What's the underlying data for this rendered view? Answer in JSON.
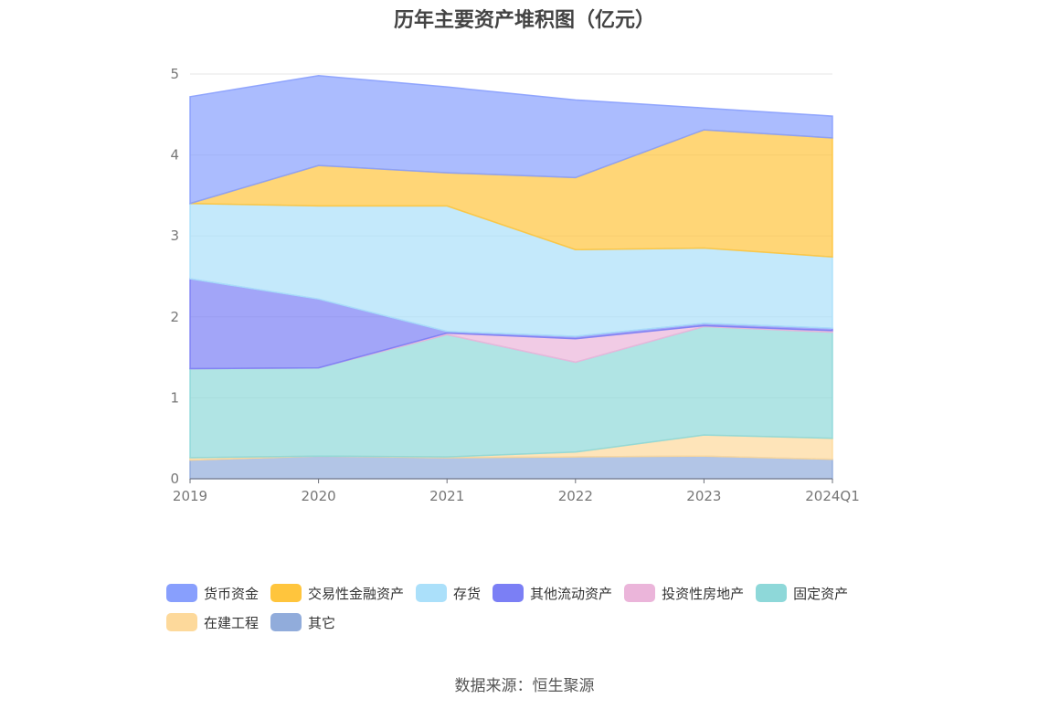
{
  "source_label": "数据来源：",
  "source_name": "恒生聚源",
  "chart_data": {
    "type": "area",
    "stacked": true,
    "title": "历年主要资产堆积图（亿元）",
    "categories": [
      "2019",
      "2020",
      "2021",
      "2022",
      "2023",
      "2024Q1"
    ],
    "ylim": [
      0,
      5
    ],
    "yticks": [
      0,
      1,
      2,
      3,
      4,
      5
    ],
    "grid": true,
    "legend_position": "bottom",
    "series": [
      {
        "name": "其它",
        "color": "#91acdb",
        "values": [
          0.23,
          0.28,
          0.26,
          0.27,
          0.28,
          0.24
        ]
      },
      {
        "name": "在建工程",
        "color": "#fdd99b",
        "values": [
          0.03,
          0.0,
          0.01,
          0.06,
          0.26,
          0.26
        ]
      },
      {
        "name": "固定资产",
        "color": "#8ed8d9",
        "values": [
          1.1,
          1.09,
          1.51,
          1.11,
          1.34,
          1.31
        ]
      },
      {
        "name": "投资性房地产",
        "color": "#ebb5da",
        "values": [
          0.0,
          0.0,
          0.02,
          0.29,
          0.01,
          0.02
        ]
      },
      {
        "name": "其他流动资产",
        "color": "#7b7ff5",
        "values": [
          1.11,
          0.85,
          0.02,
          0.03,
          0.03,
          0.03
        ]
      },
      {
        "name": "存货",
        "color": "#abe0fa",
        "values": [
          0.93,
          1.15,
          1.55,
          1.07,
          0.93,
          0.88
        ]
      },
      {
        "name": "交易性金融资产",
        "color": "#ffc53d",
        "values": [
          0.0,
          0.5,
          0.41,
          0.89,
          1.46,
          1.47
        ]
      },
      {
        "name": "货币资金",
        "color": "#889ffd",
        "values": [
          1.32,
          1.11,
          1.06,
          0.96,
          0.27,
          0.27
        ]
      }
    ],
    "legend_order": [
      "货币资金",
      "交易性金融资产",
      "存货",
      "其他流动资产",
      "投资性房地产",
      "固定资产",
      "在建工程",
      "其它"
    ]
  }
}
